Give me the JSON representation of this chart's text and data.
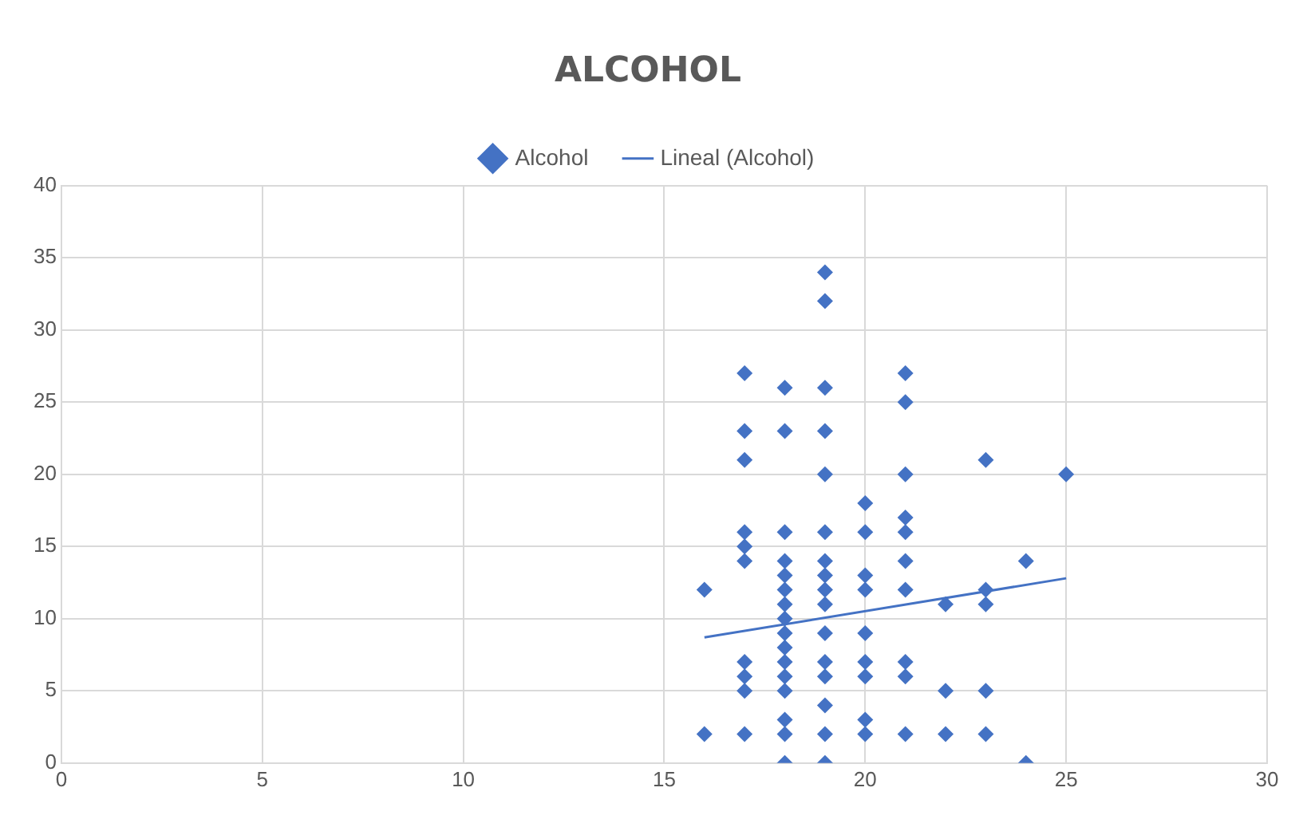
{
  "chart_data": {
    "type": "scatter",
    "title": "ALCOHOL",
    "legend": "top",
    "grid": true,
    "marker": "diamond",
    "xlim": [
      0,
      30
    ],
    "xticks": [
      0,
      5,
      10,
      15,
      20,
      25,
      30
    ],
    "ylim": [
      0,
      40
    ],
    "yticks": [
      0,
      5,
      10,
      15,
      20,
      25,
      30,
      35,
      40
    ],
    "series": [
      {
        "name": "Alcohol",
        "color": "#4472c4",
        "x": [
          16,
          16,
          17,
          17,
          17,
          17,
          17,
          17,
          17,
          17,
          17,
          17,
          18,
          18,
          18,
          18,
          18,
          18,
          18,
          18,
          18,
          18,
          18,
          18,
          18,
          18,
          18,
          18,
          19,
          19,
          19,
          19,
          19,
          19,
          19,
          19,
          19,
          19,
          19,
          19,
          19,
          19,
          19,
          19,
          20,
          20,
          20,
          20,
          20,
          20,
          20,
          20,
          20,
          21,
          21,
          21,
          21,
          21,
          21,
          21,
          21,
          21,
          21,
          22,
          22,
          22,
          23,
          23,
          23,
          23,
          23,
          24,
          24,
          25
        ],
        "values": [
          12,
          2,
          27,
          23,
          21,
          16,
          15,
          14,
          7,
          6,
          5,
          2,
          26,
          23,
          16,
          14,
          13,
          12,
          11,
          10,
          9,
          8,
          7,
          6,
          5,
          3,
          2,
          0,
          34,
          32,
          26,
          23,
          20,
          16,
          14,
          13,
          12,
          11,
          9,
          7,
          6,
          4,
          2,
          0,
          18,
          16,
          13,
          12,
          9,
          7,
          6,
          3,
          2,
          27,
          25,
          20,
          17,
          16,
          14,
          12,
          7,
          6,
          2,
          11,
          5,
          2,
          21,
          12,
          11,
          5,
          2,
          14,
          0,
          20
        ]
      },
      {
        "name": "Lineal (Alcohol)",
        "type": "line",
        "color": "#4472c4",
        "line_style": "solid",
        "marker": "none",
        "x": [
          16,
          25
        ],
        "values": [
          8.7,
          12.8
        ]
      }
    ]
  }
}
